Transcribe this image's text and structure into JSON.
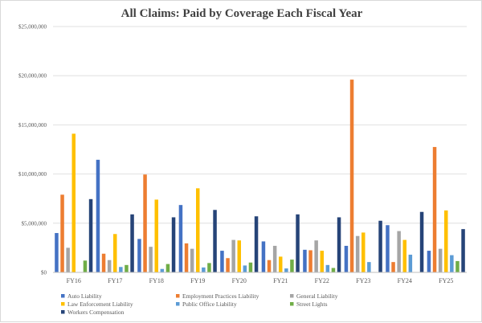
{
  "chart_data": {
    "type": "bar",
    "title": "All Claims: Paid by Coverage Each Fiscal Year",
    "xlabel": "",
    "ylabel": "",
    "ylim": [
      0,
      25000000
    ],
    "yticks": [
      0,
      5000000,
      10000000,
      15000000,
      20000000,
      25000000
    ],
    "ytick_labels": [
      "$0",
      "$5,000,000",
      "$10,000,000",
      "$15,000,000",
      "$20,000,000",
      "$25,000,000"
    ],
    "grid": true,
    "legend_position": "bottom",
    "categories": [
      "FY16",
      "FY17",
      "FY18",
      "FY19",
      "FY20",
      "FY21",
      "FY22",
      "FY23",
      "FY24",
      "FY25"
    ],
    "series": [
      {
        "name": "Auto Liability",
        "color": "#4472C4",
        "values": [
          4000000,
          11450000,
          3400000,
          6850000,
          2200000,
          3150000,
          2300000,
          2700000,
          4800000,
          2200000
        ]
      },
      {
        "name": "Employment Practices Liability",
        "color": "#ED7D31",
        "values": [
          7900000,
          1900000,
          9950000,
          2950000,
          1450000,
          1250000,
          2250000,
          19600000,
          1050000,
          12750000
        ]
      },
      {
        "name": "General Liability",
        "color": "#A5A5A5",
        "values": [
          2500000,
          1250000,
          2600000,
          2400000,
          3300000,
          2700000,
          3250000,
          3700000,
          4200000,
          2400000
        ]
      },
      {
        "name": "Law Enforcement Liability",
        "color": "#FFC000",
        "values": [
          14100000,
          3900000,
          7400000,
          8550000,
          3250000,
          1600000,
          2200000,
          4050000,
          3300000,
          6300000
        ]
      },
      {
        "name": "Public Office Liability",
        "color": "#5B9BD5",
        "values": [
          0,
          550000,
          350000,
          500000,
          700000,
          400000,
          750000,
          1050000,
          1800000,
          1750000
        ]
      },
      {
        "name": "Street Lights",
        "color": "#70AD47",
        "values": [
          1200000,
          750000,
          850000,
          950000,
          1000000,
          1300000,
          450000,
          0,
          0,
          1150000
        ]
      },
      {
        "name": "Workers Compensation",
        "color": "#264478",
        "values": [
          7450000,
          5900000,
          5600000,
          6350000,
          5700000,
          5900000,
          5600000,
          5250000,
          6150000,
          4400000
        ]
      }
    ]
  }
}
